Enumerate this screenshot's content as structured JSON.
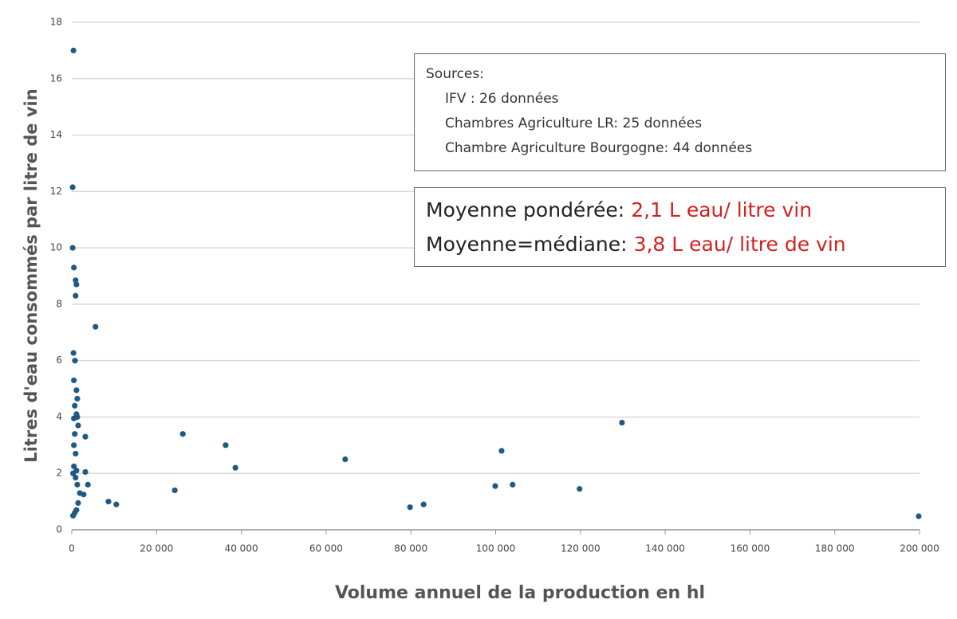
{
  "chart_data": {
    "type": "scatter",
    "y_label": "Litres d'eau consommés par litre de vin",
    "x_label": "Volume annuel de la production en hl",
    "color": "#1f5a84",
    "grid": true,
    "x": [
      400,
      200,
      200,
      500,
      900,
      1100,
      900,
      5600,
      400,
      750,
      500,
      1100,
      1300,
      700,
      1100,
      500,
      1300,
      1500,
      700,
      3200,
      500,
      900,
      500,
      1100,
      300,
      3200,
      900,
      1300,
      3800,
      1900,
      2800,
      1500,
      1100,
      300,
      700,
      8650,
      10500,
      24300,
      26200,
      36300,
      38600,
      64500,
      79800,
      83000,
      99900,
      101400,
      104000,
      119800,
      129800,
      199800
    ],
    "values": [
      17.0,
      12.15,
      10.0,
      9.3,
      8.85,
      8.7,
      8.3,
      7.2,
      6.27,
      6.0,
      5.3,
      4.95,
      4.65,
      4.4,
      4.1,
      3.95,
      4.0,
      3.7,
      3.4,
      3.3,
      3.0,
      2.7,
      2.25,
      2.1,
      2.0,
      2.05,
      1.85,
      1.6,
      1.6,
      1.3,
      1.25,
      0.95,
      0.7,
      0.5,
      0.6,
      1.0,
      0.9,
      1.4,
      3.4,
      3.0,
      2.2,
      2.5,
      0.8,
      0.9,
      1.55,
      2.8,
      1.6,
      1.45,
      3.8,
      0.48
    ],
    "xlim": [
      0,
      200000
    ],
    "ylim": [
      0,
      18
    ],
    "xticks": [
      0,
      {
        "value": 20000,
        "label": "20 000"
      },
      {
        "value": 40000,
        "label": "40 000"
      },
      {
        "value": 60000,
        "label": "60 000"
      },
      {
        "value": 80000,
        "label": "80 000"
      },
      {
        "value": 100000,
        "label": "100 000"
      },
      {
        "value": 120000,
        "label": "120 000"
      },
      {
        "value": 140000,
        "label": "140 000"
      },
      {
        "value": 160000,
        "label": "160 000"
      },
      {
        "value": 180000,
        "label": "180 000"
      },
      {
        "value": 200000,
        "label": "200 000"
      }
    ],
    "yticks": [
      0,
      2,
      4,
      6,
      8,
      10,
      12,
      14,
      16,
      18
    ],
    "annotations": {
      "sources_title": "Sources:",
      "sources": [
        "IFV : 26 données",
        "Chambres Agriculture LR: 25 données",
        "Chambre Agriculture Bourgogne: 44 données"
      ],
      "stats": [
        {
          "label": "Moyenne pondérée:",
          "value": "2,1 L eau/ litre vin"
        },
        {
          "label": "Moyenne=médiane:",
          "value": "3,8 L eau/ litre de vin"
        }
      ]
    }
  }
}
